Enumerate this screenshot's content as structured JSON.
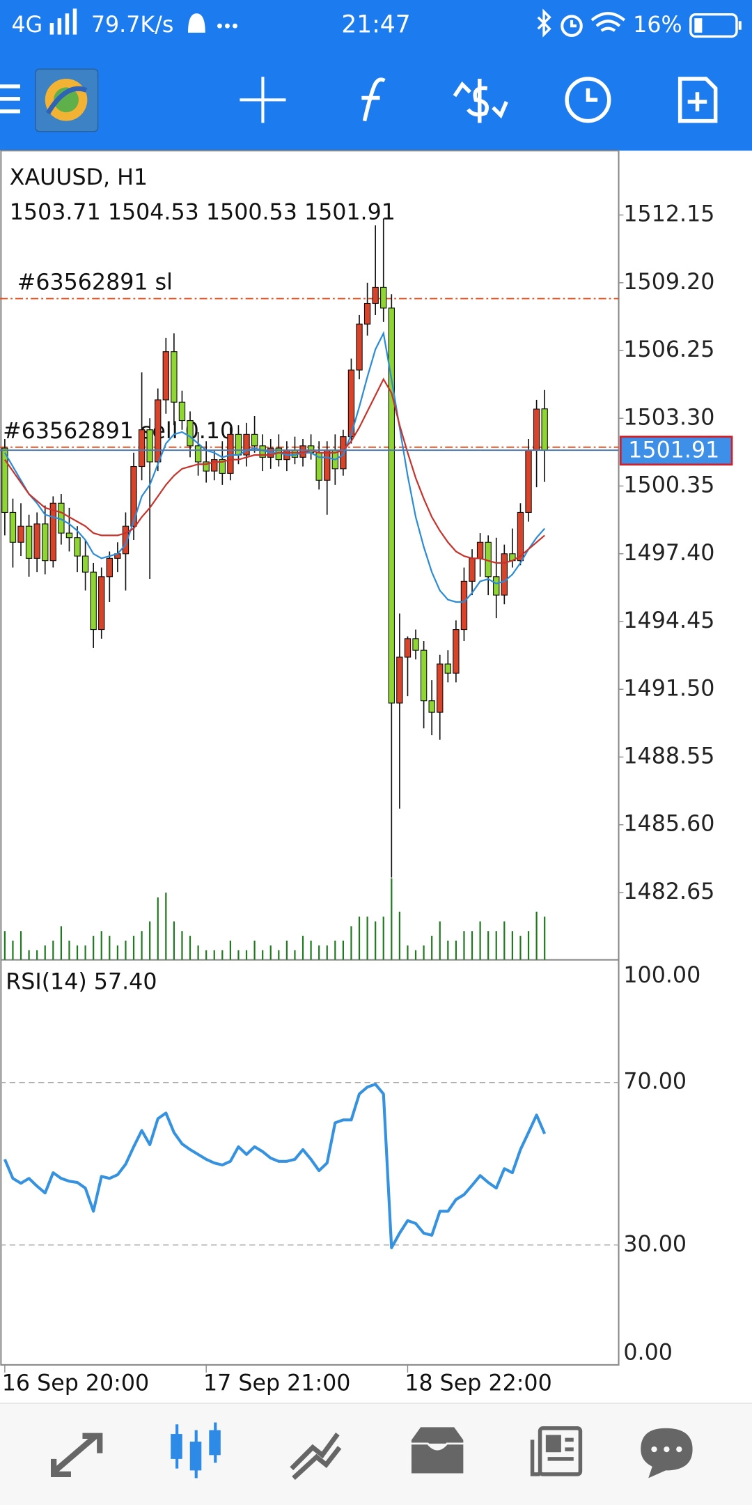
{
  "status_bar": {
    "network": "4G",
    "speed": "79.7K/s",
    "time": "21:47",
    "battery": "16%"
  },
  "chart_data": [
    {
      "type": "candlestick",
      "title": "XAUUSD, H1",
      "categories": [
        "16 Sep 20:00",
        null,
        null,
        null,
        null,
        null,
        null,
        null,
        null,
        null,
        null,
        null,
        null,
        null,
        null,
        null,
        null,
        null,
        null,
        null,
        null,
        null,
        null,
        null,
        null,
        "17 Sep 21:00",
        null,
        null,
        null,
        null,
        null,
        null,
        null,
        null,
        null,
        null,
        null,
        null,
        null,
        null,
        null,
        null,
        null,
        null,
        null,
        null,
        null,
        null,
        null,
        null,
        "18 Sep 22:00",
        null,
        null,
        null,
        null,
        null,
        null,
        null,
        null,
        null,
        null,
        null,
        null,
        null,
        null,
        null,
        null,
        null
      ],
      "open": [
        1502.0,
        1499.2,
        1497.9,
        1498.6,
        1497.2,
        1498.7,
        1497.1,
        1499.6,
        1498.3,
        1498.1,
        1497.3,
        1496.6,
        1494.1,
        1496.4,
        1497.2,
        1497.4,
        1498.6,
        1501.2,
        1502.8,
        1501.4,
        1504.1,
        1506.2,
        1504.0,
        1503.2,
        1502.1,
        1501.4,
        1501.0,
        1501.5,
        1500.9,
        1502.6,
        1501.7,
        1502.6,
        1502.1,
        1501.6,
        1502.0,
        1501.5,
        1501.9,
        1501.6,
        1502.1,
        1501.8,
        1500.6,
        1501.9,
        1501.1,
        1502.5,
        1505.4,
        1507.4,
        1508.3,
        1509.0,
        1508.1,
        1490.9,
        1492.9,
        1493.7,
        1493.2,
        1491.0,
        1490.5,
        1492.6,
        1492.2,
        1494.1,
        1496.2,
        1497.2,
        1497.9,
        1496.4,
        1495.6,
        1497.4,
        1497.1,
        1499.2,
        1501.9,
        1503.71
      ],
      "high": [
        1502.4,
        1499.8,
        1499.6,
        1499.1,
        1499.2,
        1499.5,
        1499.9,
        1500.0,
        1499.4,
        1498.6,
        1498.0,
        1497.0,
        1496.8,
        1497.5,
        1497.9,
        1499.2,
        1501.8,
        1505.3,
        1503.3,
        1504.6,
        1506.8,
        1507.0,
        1504.5,
        1503.6,
        1502.7,
        1502.3,
        1501.9,
        1502.3,
        1502.9,
        1503.0,
        1503.1,
        1503.4,
        1502.6,
        1502.4,
        1502.6,
        1502.3,
        1502.5,
        1502.4,
        1502.6,
        1502.3,
        1502.3,
        1502.6,
        1502.8,
        1505.9,
        1507.8,
        1509.2,
        1511.7,
        1512.0,
        1508.7,
        1494.8,
        1493.8,
        1494.1,
        1493.6,
        1491.9,
        1493.0,
        1493.2,
        1494.5,
        1496.8,
        1497.6,
        1498.3,
        1498.2,
        1498.1,
        1497.8,
        1498.5,
        1499.6,
        1502.4,
        1504.1,
        1504.53
      ],
      "low": [
        1498.2,
        1496.8,
        1497.3,
        1496.4,
        1496.6,
        1496.5,
        1496.8,
        1497.8,
        1497.5,
        1496.6,
        1495.8,
        1493.3,
        1493.7,
        1495.3,
        1496.6,
        1495.8,
        1498.0,
        1500.6,
        1496.3,
        1501.0,
        1503.5,
        1503.0,
        1502.8,
        1501.6,
        1500.8,
        1500.5,
        1500.6,
        1500.4,
        1500.6,
        1501.3,
        1501.2,
        1501.8,
        1501.0,
        1501.1,
        1501.2,
        1501.0,
        1501.3,
        1501.2,
        1501.5,
        1500.2,
        1499.1,
        1500.4,
        1500.8,
        1502.2,
        1505.0,
        1506.9,
        1507.8,
        1507.5,
        1483.3,
        1486.3,
        1491.2,
        1492.8,
        1489.8,
        1489.5,
        1489.3,
        1491.8,
        1491.8,
        1493.6,
        1495.6,
        1496.4,
        1495.6,
        1494.6,
        1495.2,
        1496.8,
        1496.9,
        1498.8,
        1500.3,
        1500.53
      ],
      "close": [
        1499.2,
        1497.9,
        1498.6,
        1497.2,
        1498.7,
        1497.1,
        1499.6,
        1498.3,
        1498.1,
        1497.3,
        1496.6,
        1494.1,
        1496.4,
        1497.2,
        1497.4,
        1498.6,
        1501.2,
        1502.8,
        1501.4,
        1504.1,
        1506.2,
        1504.0,
        1503.2,
        1502.1,
        1501.4,
        1501.0,
        1501.5,
        1500.9,
        1502.6,
        1501.7,
        1502.6,
        1502.1,
        1501.6,
        1502.0,
        1501.5,
        1501.9,
        1501.6,
        1502.1,
        1501.8,
        1500.6,
        1501.9,
        1501.1,
        1502.5,
        1505.4,
        1507.4,
        1508.3,
        1509.0,
        1508.1,
        1490.9,
        1492.9,
        1493.7,
        1493.2,
        1491.0,
        1490.5,
        1492.6,
        1492.2,
        1494.1,
        1496.2,
        1497.2,
        1497.9,
        1496.4,
        1495.6,
        1497.4,
        1497.1,
        1499.2,
        1501.9,
        1503.7,
        1501.91
      ],
      "bull_color": "#d9432a",
      "bear_color": "#8fd633",
      "overlays": [
        {
          "color": "#2a8bd8",
          "values": [
            1501.8,
            1501.2,
            1500.6,
            1500.0,
            1499.6,
            1499.1,
            1499.0,
            1498.9,
            1498.7,
            1498.4,
            1498.0,
            1497.4,
            1497.2,
            1497.3,
            1497.4,
            1497.8,
            1498.8,
            1499.9,
            1500.4,
            1501.3,
            1502.2,
            1502.6,
            1502.7,
            1502.5,
            1502.2,
            1501.9,
            1501.8,
            1501.6,
            1501.7,
            1501.7,
            1501.9,
            1502.0,
            1501.9,
            1501.8,
            1501.8,
            1501.7,
            1501.7,
            1501.8,
            1501.8,
            1501.6,
            1501.6,
            1501.5,
            1501.7,
            1502.6,
            1503.8,
            1505.1,
            1506.3,
            1507.0,
            1505.0,
            1502.9,
            1500.8,
            1499.0,
            1497.7,
            1496.6,
            1495.8,
            1495.4,
            1495.3,
            1495.3,
            1495.7,
            1496.2,
            1496.3,
            1496.1,
            1496.2,
            1496.5,
            1497.0,
            1497.6,
            1498.1,
            1498.5
          ]
        },
        {
          "color": "#c8322a",
          "values": [
            1501.5,
            1501.0,
            1500.5,
            1500.0,
            1499.7,
            1499.4,
            1499.3,
            1499.2,
            1499.0,
            1498.8,
            1498.6,
            1498.3,
            1498.2,
            1498.2,
            1498.2,
            1498.3,
            1498.5,
            1499.0,
            1499.4,
            1499.9,
            1500.4,
            1500.8,
            1501.1,
            1501.2,
            1501.3,
            1501.3,
            1501.4,
            1501.4,
            1501.5,
            1501.5,
            1501.6,
            1501.7,
            1501.7,
            1501.7,
            1501.8,
            1501.8,
            1501.8,
            1501.8,
            1501.9,
            1501.8,
            1501.8,
            1501.8,
            1501.9,
            1502.3,
            1502.9,
            1503.6,
            1504.3,
            1505.0,
            1504.4,
            1503.0,
            1501.8,
            1500.7,
            1499.8,
            1499.0,
            1498.4,
            1497.9,
            1497.5,
            1497.3,
            1497.2,
            1497.2,
            1497.1,
            1497.0,
            1497.0,
            1497.1,
            1497.3,
            1497.6,
            1497.9,
            1498.2
          ]
        }
      ],
      "volumes": {
        "color": "#1f7a1f",
        "ylim": [
          0,
          8500
        ],
        "values": [
          3000,
          2000,
          3000,
          1000,
          1000,
          1500,
          2000,
          3500,
          2000,
          1500,
          1500,
          2500,
          3000,
          2500,
          1500,
          2000,
          2500,
          3000,
          4000,
          6500,
          7000,
          4000,
          3000,
          2500,
          1500,
          1000,
          1000,
          1000,
          2000,
          1000,
          1000,
          2000,
          1000,
          1500,
          1000,
          2000,
          1000,
          2500,
          2000,
          1500,
          1500,
          2000,
          2000,
          3500,
          4500,
          4500,
          4000,
          4500,
          8500,
          5000,
          1500,
          1000,
          1500,
          2500,
          4000,
          2000,
          2000,
          3000,
          3000,
          4000,
          3000,
          3000,
          4000,
          3000,
          2500,
          3000,
          5000,
          4500
        ]
      },
      "annotations": [
        {
          "label": "#63562891 sl",
          "value": 1508.51,
          "color": "#e8501e"
        },
        {
          "label": "#63562891 sell 0.10",
          "value": 1502.04,
          "color": "#e8501e"
        }
      ],
      "price_line_color": "#4f7bb5",
      "price_label_color": "#3d8fe8",
      "ylim": [
        1479.72,
        1514.95
      ],
      "yticks": [
        1512.15,
        {
          "value": 1509.2,
          "label": "1509.20"
        },
        1506.25,
        {
          "value": 1503.3,
          "label": "1503.30"
        },
        1500.35,
        {
          "value": 1497.4,
          "label": "1497.40"
        },
        1494.45,
        {
          "value": 1491.5,
          "label": "1491.50"
        },
        1488.55,
        {
          "value": 1485.6,
          "label": "1485.60"
        },
        1482.65
      ]
    },
    {
      "type": "line",
      "title": "RSI(14)",
      "value_label": "57.40",
      "color": "#3592e0",
      "values": [
        51.1,
        46.4,
        45.2,
        46.4,
        44.5,
        42.8,
        47.8,
        46.4,
        45.7,
        45.4,
        44,
        38.3,
        46.9,
        46.4,
        47.3,
        49.9,
        54.2,
        58.2,
        54.7,
        61.1,
        62.5,
        57.7,
        54.9,
        53.5,
        52.3,
        51.1,
        50.2,
        49.7,
        50.6,
        54.2,
        52.3,
        54.2,
        53,
        51.4,
        50.6,
        50.6,
        51.1,
        53.5,
        51.1,
        48.3,
        50.2,
        60.1,
        60.8,
        60.8,
        67.2,
        68.9,
        69.6,
        67.2,
        29.3,
        32.9,
        36,
        35.3,
        32.9,
        32.4,
        38.3,
        38.3,
        41.2,
        42.4,
        44.7,
        47.1,
        45.4,
        44,
        48.8,
        47.8,
        53.5,
        57.7,
        62,
        57.4
      ],
      "ylim": [
        0,
        100
      ],
      "yticks": [
        {
          "value": 100,
          "label": "100.00"
        },
        {
          "value": 70,
          "label": "70.00"
        },
        {
          "value": 30,
          "label": "30.00"
        },
        {
          "value": 0,
          "label": "0.00"
        }
      ],
      "levels": [
        70,
        30
      ]
    }
  ]
}
